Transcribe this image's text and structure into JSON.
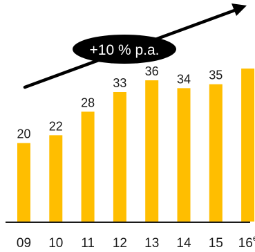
{
  "chart_data": {
    "type": "bar",
    "categories": [
      "09",
      "10",
      "11",
      "12",
      "13",
      "14",
      "15",
      "16"
    ],
    "values": [
      20,
      22,
      28,
      33,
      36,
      34,
      35,
      39
    ],
    "data_labels": [
      "20",
      "22",
      "28",
      "33",
      "36",
      "34",
      "35",
      ""
    ],
    "last_category_superscript": "e",
    "title": "",
    "xlabel": "",
    "ylabel": "",
    "ylim": [
      0,
      42
    ],
    "grid": false,
    "legend": "none",
    "annotation": "+10 % p.a.",
    "colors": {
      "bar": "#FFBE00",
      "axis": "#1a1a1a",
      "arrow": "#000000",
      "badge_bg": "#000000",
      "badge_text": "#ffffff"
    }
  }
}
